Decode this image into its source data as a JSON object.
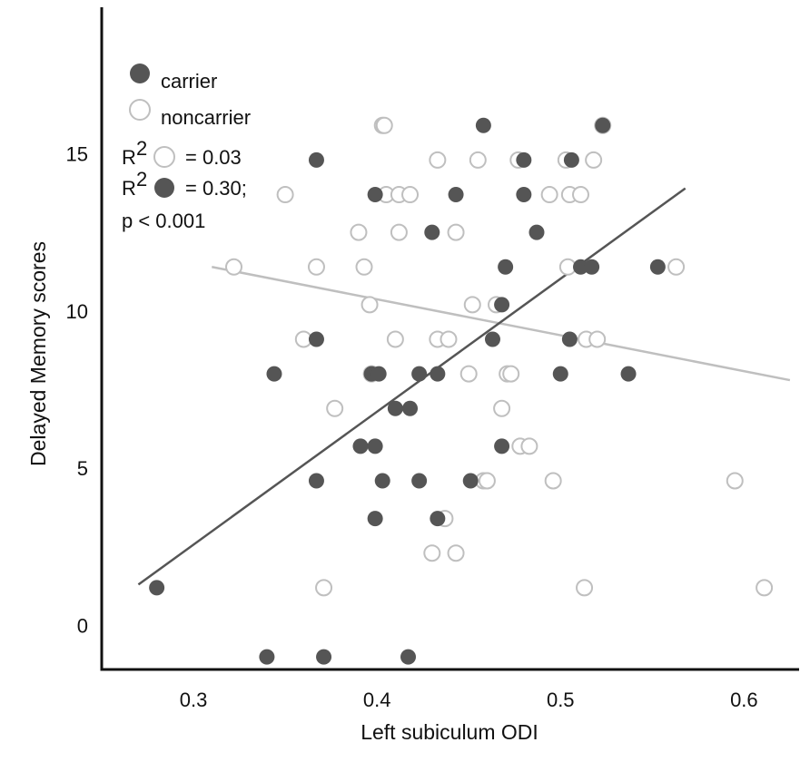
{
  "chart_data": {
    "type": "scatter",
    "title": "",
    "xlabel": "Left subiculum ODI",
    "ylabel": "Delayed Memory scores",
    "xlim": [
      0.25,
      0.63
    ],
    "ylim": [
      -1.4,
      19.6
    ],
    "x_ticks": [
      {
        "value": 0.3,
        "label": "0.3"
      },
      {
        "value": 0.4,
        "label": "0.4"
      },
      {
        "value": 0.5,
        "label": "0.5"
      },
      {
        "value": 0.6,
        "label": "0.6"
      }
    ],
    "y_ticks": [
      {
        "value": 0,
        "label": "0"
      },
      {
        "value": 5,
        "label": "5"
      },
      {
        "value": 10,
        "label": "10"
      },
      {
        "value": 15,
        "label": "15"
      }
    ],
    "colors": {
      "carrier": "#555555",
      "noncarrier": "#bfbfbf",
      "axis": "#111111"
    },
    "legend": [
      {
        "name": "carrier",
        "style": "filled"
      },
      {
        "name": "noncarrier",
        "style": "open"
      }
    ],
    "annotations": [
      {
        "lines": [
          {
            "prefix": "R",
            "sup": "2",
            "marker": "open",
            "suffix": "= 0.03"
          },
          {
            "prefix": "R",
            "sup": "2",
            "marker": "filled",
            "suffix": "= 0.30;"
          },
          {
            "prefix": "p < 0.001",
            "sup": "",
            "marker": "",
            "suffix": ""
          }
        ]
      }
    ],
    "series": [
      {
        "name": "carrier",
        "style": "filled",
        "points": [
          [
            0.28,
            1.2
          ],
          [
            0.34,
            -1
          ],
          [
            0.371,
            -1
          ],
          [
            0.417,
            -1
          ],
          [
            0.344,
            8
          ],
          [
            0.367,
            9.1
          ],
          [
            0.367,
            4.6
          ],
          [
            0.367,
            14.8
          ],
          [
            0.391,
            5.7
          ],
          [
            0.399,
            5.7
          ],
          [
            0.399,
            3.4
          ],
          [
            0.403,
            4.6
          ],
          [
            0.397,
            8
          ],
          [
            0.401,
            8
          ],
          [
            0.41,
            6.9
          ],
          [
            0.418,
            6.9
          ],
          [
            0.399,
            13.7
          ],
          [
            0.423,
            8
          ],
          [
            0.423,
            4.6
          ],
          [
            0.43,
            12.5
          ],
          [
            0.433,
            8
          ],
          [
            0.433,
            3.4
          ],
          [
            0.443,
            13.7
          ],
          [
            0.451,
            4.6
          ],
          [
            0.458,
            15.9
          ],
          [
            0.463,
            9.1
          ],
          [
            0.468,
            10.2
          ],
          [
            0.468,
            5.7
          ],
          [
            0.47,
            11.4
          ],
          [
            0.48,
            14.8
          ],
          [
            0.48,
            13.7
          ],
          [
            0.487,
            12.5
          ],
          [
            0.5,
            8
          ],
          [
            0.505,
            9.1
          ],
          [
            0.506,
            14.8
          ],
          [
            0.511,
            11.4
          ],
          [
            0.517,
            11.4
          ],
          [
            0.523,
            15.9
          ],
          [
            0.537,
            8
          ],
          [
            0.553,
            11.4
          ]
        ],
        "trend": {
          "x": [
            0.27,
            0.568
          ],
          "y": [
            1.3,
            13.9
          ]
        }
      },
      {
        "name": "noncarrier",
        "style": "open",
        "points": [
          [
            0.322,
            11.4
          ],
          [
            0.35,
            13.7
          ],
          [
            0.36,
            9.1
          ],
          [
            0.367,
            11.4
          ],
          [
            0.371,
            1.2
          ],
          [
            0.377,
            6.9
          ],
          [
            0.39,
            12.5
          ],
          [
            0.393,
            11.4
          ],
          [
            0.396,
            10.2
          ],
          [
            0.397,
            8
          ],
          [
            0.403,
            15.9
          ],
          [
            0.404,
            15.9
          ],
          [
            0.405,
            13.7
          ],
          [
            0.41,
            9.1
          ],
          [
            0.412,
            13.7
          ],
          [
            0.412,
            12.5
          ],
          [
            0.418,
            13.7
          ],
          [
            0.43,
            2.3
          ],
          [
            0.433,
            14.8
          ],
          [
            0.433,
            9.1
          ],
          [
            0.437,
            3.4
          ],
          [
            0.439,
            9.1
          ],
          [
            0.443,
            12.5
          ],
          [
            0.443,
            2.3
          ],
          [
            0.45,
            8
          ],
          [
            0.452,
            10.2
          ],
          [
            0.455,
            14.8
          ],
          [
            0.458,
            4.6
          ],
          [
            0.46,
            4.6
          ],
          [
            0.465,
            10.2
          ],
          [
            0.468,
            6.9
          ],
          [
            0.471,
            8
          ],
          [
            0.473,
            8
          ],
          [
            0.477,
            14.8
          ],
          [
            0.478,
            5.7
          ],
          [
            0.483,
            5.7
          ],
          [
            0.494,
            13.7
          ],
          [
            0.496,
            4.6
          ],
          [
            0.503,
            14.8
          ],
          [
            0.504,
            11.4
          ],
          [
            0.505,
            13.7
          ],
          [
            0.511,
            13.7
          ],
          [
            0.513,
            1.2
          ],
          [
            0.514,
            9.1
          ],
          [
            0.518,
            14.8
          ],
          [
            0.52,
            9.1
          ],
          [
            0.523,
            15.9
          ],
          [
            0.563,
            11.4
          ],
          [
            0.595,
            4.6
          ],
          [
            0.611,
            1.2
          ]
        ],
        "trend": {
          "x": [
            0.31,
            0.625
          ],
          "y": [
            11.4,
            7.8
          ]
        }
      }
    ]
  }
}
